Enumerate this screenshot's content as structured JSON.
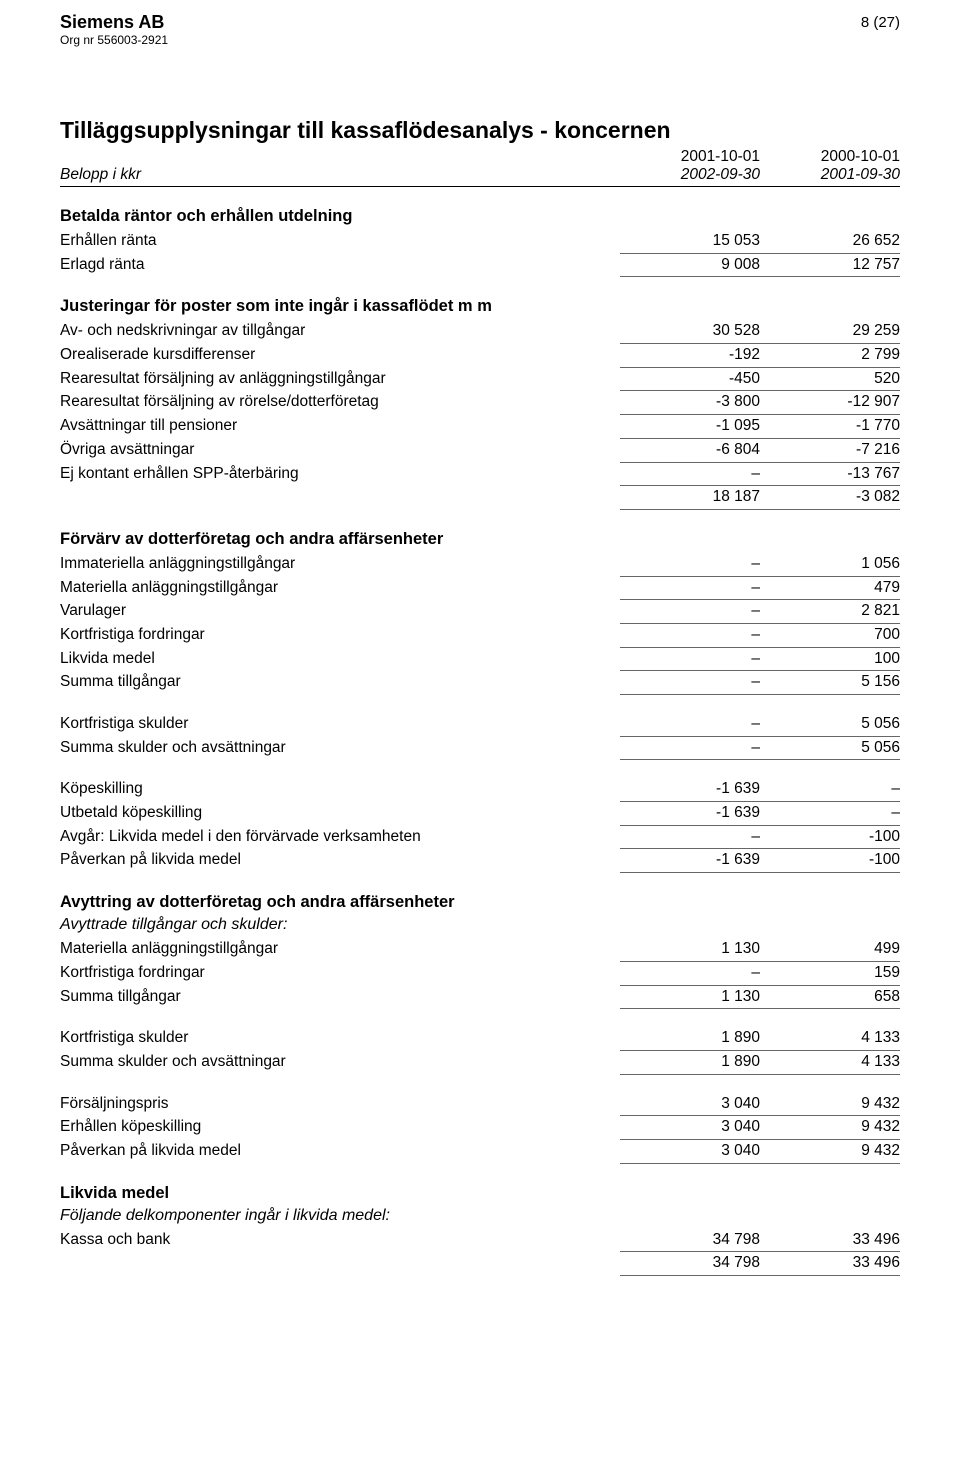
{
  "header": {
    "company": "Siemens AB",
    "orgnr": "Org nr 556003-2921",
    "page": "8 (27)"
  },
  "title": "Tilläggsupplysningar till kassaflödesanalys - koncernen",
  "periods": {
    "p1a": "2001-10-01",
    "p2a": "2000-10-01",
    "p1b": "2002-09-30",
    "p2b": "2001-09-30"
  },
  "belopp_label": "Belopp i kkr",
  "sections": {
    "s1": {
      "head": "Betalda räntor och erhållen utdelning",
      "rows": [
        {
          "lbl": "Erhållen ränta",
          "c1": "15 053",
          "c2": "26 652"
        },
        {
          "lbl": "Erlagd ränta",
          "c1": "9 008",
          "c2": "12 757"
        }
      ]
    },
    "s2": {
      "head": "Justeringar för poster som inte ingår i kassaflödet m m",
      "rows": [
        {
          "lbl": "Av- och nedskrivningar av tillgångar",
          "c1": "30 528",
          "c2": "29 259"
        },
        {
          "lbl": "Orealiserade kursdifferenser",
          "c1": "-192",
          "c2": "2 799"
        },
        {
          "lbl": "Rearesultat försäljning av anläggningstillgångar",
          "c1": "-450",
          "c2": "520"
        },
        {
          "lbl": "Rearesultat försäljning av rörelse/dotterföretag",
          "c1": "-3 800",
          "c2": "-12 907"
        },
        {
          "lbl": "Avsättningar till pensioner",
          "c1": "-1 095",
          "c2": "-1 770"
        },
        {
          "lbl": "Övriga avsättningar",
          "c1": "-6 804",
          "c2": "-7 216"
        },
        {
          "lbl": "Ej kontant erhållen SPP-återbäring",
          "c1": "–",
          "c2": "-13 767"
        },
        {
          "lbl": "",
          "c1": "18 187",
          "c2": "-3 082"
        }
      ]
    },
    "s3": {
      "head": "Förvärv av dotterföretag och andra affärsenheter",
      "g1": [
        {
          "lbl": "Immateriella anläggningstillgångar",
          "c1": "–",
          "c2": "1 056"
        },
        {
          "lbl": "Materiella anläggningstillgångar",
          "c1": "–",
          "c2": "479"
        },
        {
          "lbl": "Varulager",
          "c1": "–",
          "c2": "2 821"
        },
        {
          "lbl": "Kortfristiga fordringar",
          "c1": "–",
          "c2": "700"
        },
        {
          "lbl": "Likvida medel",
          "c1": "–",
          "c2": "100"
        },
        {
          "lbl": "Summa tillgångar",
          "c1": "–",
          "c2": "5 156"
        }
      ],
      "g2": [
        {
          "lbl": "Kortfristiga skulder",
          "c1": "–",
          "c2": "5 056"
        },
        {
          "lbl": "Summa skulder och avsättningar",
          "c1": "–",
          "c2": "5 056"
        }
      ],
      "g3": [
        {
          "lbl": "Köpeskilling",
          "c1": "-1 639",
          "c2": "–"
        },
        {
          "lbl": "Utbetald köpeskilling",
          "c1": "-1 639",
          "c2": "–"
        },
        {
          "lbl": "Avgår:  Likvida medel i den förvärvade verksamheten",
          "c1": "–",
          "c2": "-100"
        },
        {
          "lbl": "Påverkan på likvida medel",
          "c1": "-1 639",
          "c2": "-100"
        }
      ]
    },
    "s4": {
      "head": "Avyttring av dotterföretag och andra affärsenheter",
      "sub": "Avyttrade tillgångar och skulder:",
      "g1": [
        {
          "lbl": "Materiella anläggningstillgångar",
          "c1": "1 130",
          "c2": "499"
        },
        {
          "lbl": "Kortfristiga fordringar",
          "c1": "–",
          "c2": "159"
        },
        {
          "lbl": "Summa tillgångar",
          "c1": "1 130",
          "c2": "658"
        }
      ],
      "g2": [
        {
          "lbl": "Kortfristiga skulder",
          "c1": "1 890",
          "c2": "4 133"
        },
        {
          "lbl": "Summa skulder och avsättningar",
          "c1": "1 890",
          "c2": "4 133"
        }
      ],
      "g3": [
        {
          "lbl": "Försäljningspris",
          "c1": "3 040",
          "c2": "9 432"
        },
        {
          "lbl": "Erhållen köpeskilling",
          "c1": "3 040",
          "c2": "9 432"
        },
        {
          "lbl": "Påverkan på likvida medel",
          "c1": "3 040",
          "c2": "9 432"
        }
      ]
    },
    "s5": {
      "head": "Likvida medel",
      "sub": "Följande delkomponenter ingår i likvida medel:",
      "rows": [
        {
          "lbl": "Kassa och bank",
          "c1": "34 798",
          "c2": "33 496"
        },
        {
          "lbl": "",
          "c1": "34 798",
          "c2": "33 496"
        }
      ]
    }
  }
}
